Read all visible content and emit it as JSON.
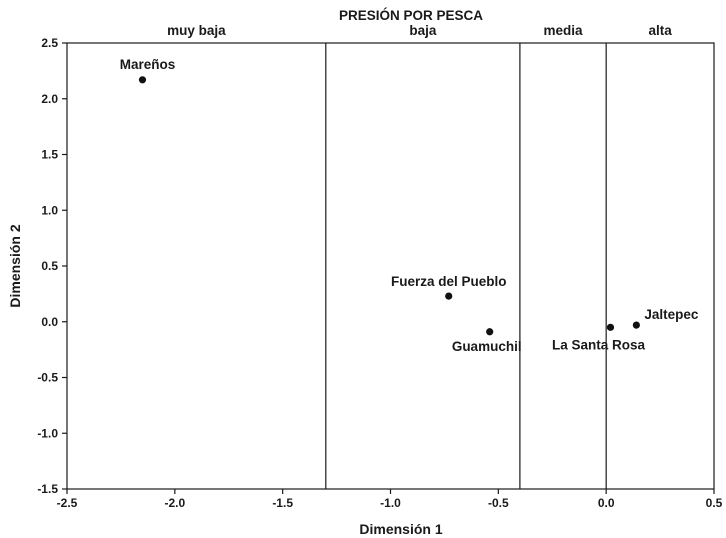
{
  "chart_data": {
    "type": "scatter",
    "title": "PRESIÓN POR PESCA",
    "xlabel": "Dimensión 1",
    "ylabel": "Dimensión 2",
    "xlim": [
      -2.5,
      0.5
    ],
    "ylim": [
      -1.5,
      2.5
    ],
    "x_ticks": [
      "-2.5",
      "-2.0",
      "-1.5",
      "-1.0",
      "-0.5",
      "0.0",
      "0.5"
    ],
    "y_ticks": [
      "2.5",
      "2.0",
      "1.5",
      "1.0",
      "0.5",
      "0.0",
      "-0.5",
      "-1.0",
      "-1.5"
    ],
    "x_tick_values": [
      -2.5,
      -2.0,
      -1.5,
      -1.0,
      -0.5,
      0.0,
      0.5
    ],
    "y_tick_values": [
      2.5,
      2.0,
      1.5,
      1.0,
      0.5,
      0.0,
      -0.5,
      -1.0,
      -1.5
    ],
    "grid": false,
    "points": [
      {
        "label": "Mareños",
        "x": -2.15,
        "y": 2.17
      },
      {
        "label": "Fuerza del Pueblo",
        "x": -0.73,
        "y": 0.23
      },
      {
        "label": "Guamuchil",
        "x": -0.54,
        "y": -0.09
      },
      {
        "label": "La Santa Rosa",
        "x": 0.02,
        "y": -0.05
      },
      {
        "label": "Jaltepec",
        "x": 0.14,
        "y": -0.03
      }
    ],
    "zone_boundaries": [
      -1.3,
      -0.4,
      0.0
    ],
    "zones": [
      {
        "label": "muy baja",
        "from": -2.5,
        "to": -1.3
      },
      {
        "label": "baja",
        "from": -1.3,
        "to": -0.4
      },
      {
        "label": "media",
        "from": -0.4,
        "to": 0.0
      },
      {
        "label": "alta",
        "from": 0.0,
        "to": 0.5
      }
    ],
    "colors": {
      "axis": "#1a1a1a",
      "point": "#111111",
      "background": "#ffffff"
    }
  }
}
